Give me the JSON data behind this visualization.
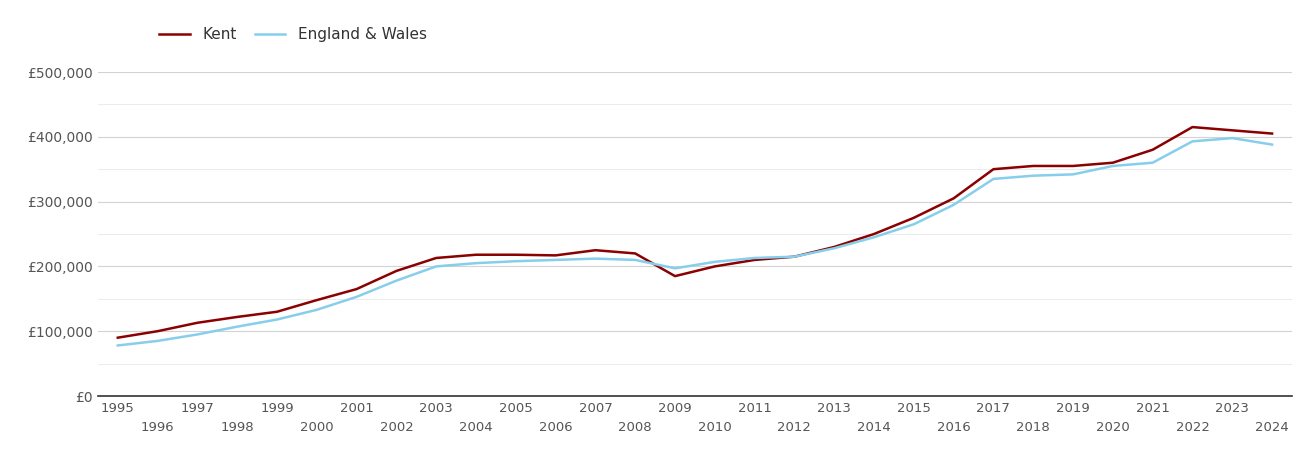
{
  "kent": {
    "years": [
      1995,
      1996,
      1997,
      1998,
      1999,
      2000,
      2001,
      2002,
      2003,
      2004,
      2005,
      2006,
      2007,
      2008,
      2009,
      2010,
      2011,
      2012,
      2013,
      2014,
      2015,
      2016,
      2017,
      2018,
      2019,
      2020,
      2021,
      2022,
      2023,
      2024
    ],
    "values": [
      90000,
      100000,
      113000,
      122000,
      130000,
      148000,
      165000,
      193000,
      213000,
      218000,
      218000,
      217000,
      225000,
      220000,
      185000,
      200000,
      210000,
      215000,
      230000,
      250000,
      275000,
      305000,
      350000,
      355000,
      355000,
      360000,
      380000,
      415000,
      410000,
      405000
    ]
  },
  "england_wales": {
    "years": [
      1995,
      1996,
      1997,
      1998,
      1999,
      2000,
      2001,
      2002,
      2003,
      2004,
      2005,
      2006,
      2007,
      2008,
      2009,
      2010,
      2011,
      2012,
      2013,
      2014,
      2015,
      2016,
      2017,
      2018,
      2019,
      2020,
      2021,
      2022,
      2023,
      2024
    ],
    "values": [
      78000,
      85000,
      95000,
      107000,
      118000,
      133000,
      153000,
      178000,
      200000,
      205000,
      208000,
      210000,
      212000,
      210000,
      197000,
      207000,
      213000,
      215000,
      228000,
      245000,
      265000,
      295000,
      335000,
      340000,
      342000,
      355000,
      360000,
      393000,
      398000,
      388000
    ]
  },
  "kent_color": "#8B0000",
  "ew_color": "#87CEEB",
  "background_color": "#ffffff",
  "grid_color_major": "#d3d3d3",
  "grid_color_minor": "#e8e8e8",
  "ylim": [
    0,
    500000
  ],
  "yticks": [
    0,
    100000,
    200000,
    300000,
    400000,
    500000
  ],
  "ytick_labels": [
    "£0",
    "£100,000",
    "£200,000",
    "£300,000",
    "£400,000",
    "£500,000"
  ],
  "legend_labels": [
    "Kent",
    "England & Wales"
  ],
  "line_width": 1.8,
  "odd_years": [
    1995,
    1997,
    1999,
    2001,
    2003,
    2005,
    2007,
    2009,
    2011,
    2013,
    2015,
    2017,
    2019,
    2021,
    2023
  ],
  "even_years": [
    1996,
    1998,
    2000,
    2002,
    2004,
    2006,
    2008,
    2010,
    2012,
    2014,
    2016,
    2018,
    2020,
    2022,
    2024
  ]
}
